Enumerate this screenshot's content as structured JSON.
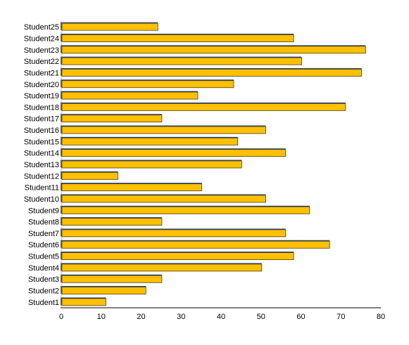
{
  "chart_data": {
    "type": "bar",
    "orientation": "horizontal",
    "categories": [
      "Student1",
      "Student2",
      "Student3",
      "Student4",
      "Student5",
      "Student6",
      "Student7",
      "Student8",
      "Student9",
      "Student10",
      "Student11",
      "Student12",
      "Student13",
      "Student14",
      "Student15",
      "Student16",
      "Student17",
      "Student18",
      "Student19",
      "Student20",
      "Student21",
      "Student22",
      "Student23",
      "Student24",
      "Student25"
    ],
    "values": [
      11,
      21,
      25,
      50,
      58,
      67,
      56,
      25,
      62,
      51,
      35,
      14,
      45,
      56,
      44,
      51,
      25,
      71,
      34,
      43,
      75,
      60,
      76,
      58,
      24
    ],
    "xlim": [
      0,
      80
    ],
    "xticks": [
      0,
      10,
      20,
      30,
      40,
      50,
      60,
      70,
      80
    ],
    "grid": false,
    "colors": {
      "bar_fill": "#FFC000",
      "bar_edge": "#4a3c00",
      "bar_shadow": "#2E4A8A",
      "axis": "#000000"
    }
  }
}
